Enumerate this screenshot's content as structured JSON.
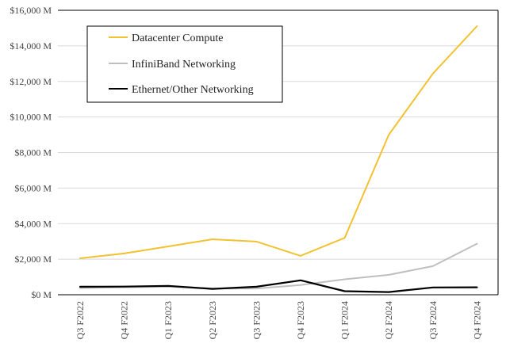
{
  "chart_data": {
    "type": "line",
    "categories": [
      "Q3 F2022",
      "Q4 F2022",
      "Q1 F2023",
      "Q2 F2023",
      "Q3 F2023",
      "Q4 F2023",
      "Q1 F2024",
      "Q2 F2024",
      "Q3 F2024",
      "Q4 F2024"
    ],
    "ylim": [
      0,
      16000
    ],
    "y_ticks": [
      0,
      2000,
      4000,
      6000,
      8000,
      10000,
      12000,
      14000,
      16000
    ],
    "y_tick_labels": [
      "$0 M",
      "$2,000 M",
      "$4,000 M",
      "$6,000 M",
      "$8,000 M",
      "$10,000 M",
      "$12,000 M",
      "$14,000 M",
      "$16,000 M"
    ],
    "grid": true,
    "legend_position": "top-left",
    "series": [
      {
        "name": "Datacenter Compute",
        "color": "#F2C230",
        "values": [
          2050,
          2320,
          2720,
          3120,
          2990,
          2190,
          3200,
          9000,
          12440,
          15110
        ]
      },
      {
        "name": "InfiniBand Networking",
        "color": "#BFBFBF",
        "values": [
          370,
          420,
          450,
          350,
          350,
          550,
          870,
          1120,
          1610,
          2870
        ]
      },
      {
        "name": "Ethernet/Other Networking",
        "color": "#000000",
        "values": [
          450,
          460,
          500,
          330,
          450,
          810,
          200,
          150,
          410,
          420
        ]
      }
    ]
  }
}
